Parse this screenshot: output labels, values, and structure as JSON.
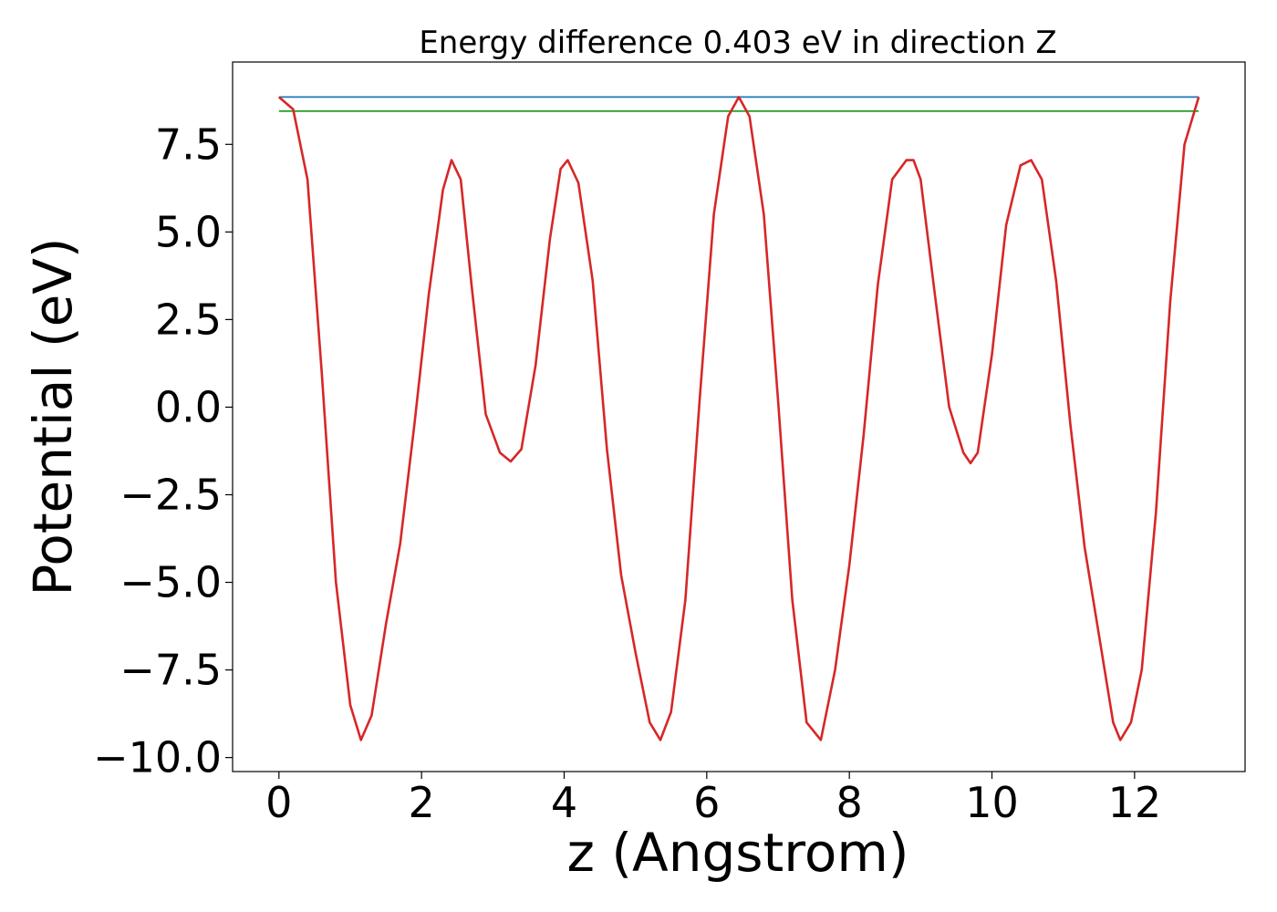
{
  "chart_data": {
    "type": "line",
    "title": "Energy difference 0.403 eV in direction Z",
    "xlabel": "z (Angstrom)",
    "ylabel": "Potential (eV)",
    "xlim": [
      -0.65,
      13.55
    ],
    "ylim": [
      -10.4,
      9.85
    ],
    "xticks": [
      0,
      2,
      4,
      6,
      8,
      10,
      12
    ],
    "xtick_labels": [
      "0",
      "2",
      "4",
      "6",
      "8",
      "10",
      "12"
    ],
    "yticks": [
      7.5,
      5.0,
      2.5,
      0.0,
      -2.5,
      -5.0,
      -7.5,
      -10.0
    ],
    "ytick_labels": [
      "7.5",
      "5.0",
      "2.5",
      "0.0",
      "−2.5",
      "−5.0",
      "−7.5",
      "−10.0"
    ],
    "grid": false,
    "series": [
      {
        "color": "#1f77b4",
        "x": [
          0,
          12.9
        ],
        "y": [
          8.85,
          8.85
        ]
      },
      {
        "color": "#2ca02c",
        "x": [
          0,
          12.9
        ],
        "y": [
          8.45,
          8.45
        ]
      },
      {
        "color": "#d62728",
        "x": [
          0,
          0.2,
          0.4,
          0.6,
          0.8,
          1.0,
          1.15,
          1.3,
          1.5,
          1.7,
          1.9,
          2.1,
          2.3,
          2.42,
          2.55,
          2.7,
          2.9,
          3.1,
          3.25,
          3.4,
          3.6,
          3.8,
          3.95,
          4.05,
          4.2,
          4.4,
          4.6,
          4.8,
          5.0,
          5.2,
          5.35,
          5.5,
          5.7,
          5.9,
          6.1,
          6.3,
          6.45,
          6.6,
          6.8,
          7.0,
          7.2,
          7.4,
          7.6,
          7.8,
          8.0,
          8.2,
          8.4,
          8.6,
          8.8,
          8.9,
          9.0,
          9.2,
          9.4,
          9.6,
          9.7,
          9.8,
          10.0,
          10.2,
          10.4,
          10.55,
          10.7,
          10.9,
          11.1,
          11.3,
          11.5,
          11.7,
          11.8,
          11.95,
          12.1,
          12.3,
          12.5,
          12.7,
          12.9
        ],
        "y": [
          8.85,
          8.5,
          6.5,
          1.0,
          -5.0,
          -8.5,
          -9.5,
          -8.8,
          -6.2,
          -3.9,
          -0.5,
          3.2,
          6.2,
          7.05,
          6.5,
          3.5,
          -0.2,
          -1.3,
          -1.55,
          -1.2,
          1.2,
          4.8,
          6.8,
          7.05,
          6.4,
          3.6,
          -1.2,
          -4.8,
          -7.0,
          -9.0,
          -9.5,
          -8.7,
          -5.5,
          0.2,
          5.5,
          8.3,
          8.85,
          8.3,
          5.5,
          0.2,
          -5.5,
          -9.0,
          -9.5,
          -7.5,
          -4.5,
          -0.8,
          3.5,
          6.5,
          7.05,
          7.05,
          6.5,
          3.2,
          0.0,
          -1.3,
          -1.6,
          -1.3,
          1.5,
          5.2,
          6.9,
          7.05,
          6.5,
          3.6,
          -0.5,
          -4.0,
          -6.5,
          -9.0,
          -9.5,
          -9.0,
          -7.5,
          -3.0,
          3.0,
          7.5,
          8.85
        ]
      }
    ]
  }
}
